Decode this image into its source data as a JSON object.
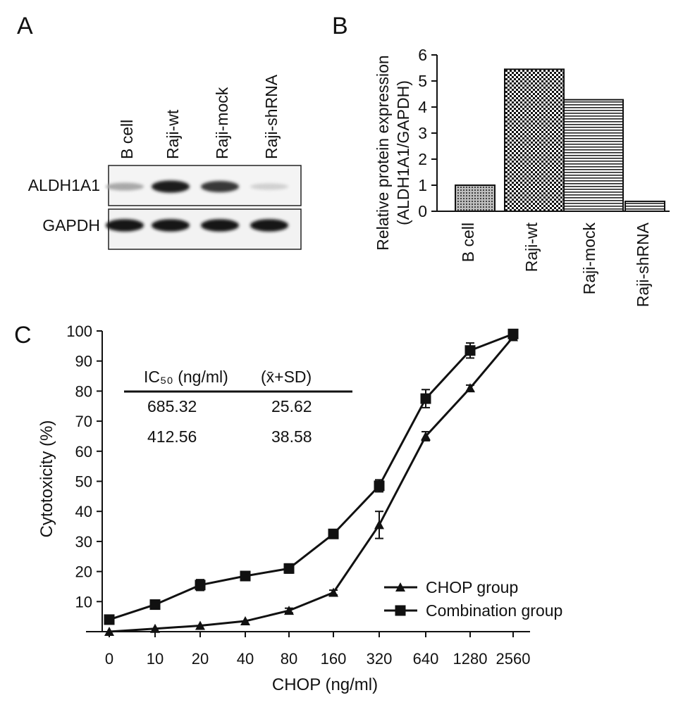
{
  "panels": {
    "a": "A",
    "b": "B",
    "c": "C"
  },
  "western_blot": {
    "lanes": [
      "B cell",
      "Raji-wt",
      "Raji-mock",
      "Raji-shRNA"
    ],
    "rows": [
      {
        "label": "ALDH1A1",
        "intensity": [
          0.3,
          0.92,
          0.8,
          0.12
        ]
      },
      {
        "label": "GAPDH",
        "intensity": [
          0.95,
          0.95,
          0.95,
          0.95
        ]
      }
    ]
  },
  "chart_data": [
    {
      "type": "bar",
      "ylabel_line1": "Relative protein expression",
      "ylabel_line2": "(ALDH1A1/GAPDH)",
      "categories": [
        "B cell",
        "Raji-wt",
        "Raji-mock",
        "Raji-shRNA"
      ],
      "values": [
        1.0,
        5.45,
        4.28,
        0.38
      ],
      "patterns": [
        "dots",
        "checker",
        "hlines",
        "hlines"
      ],
      "ylim": [
        0,
        6
      ],
      "yticks": [
        0,
        1,
        2,
        3,
        4,
        5,
        6
      ]
    },
    {
      "type": "line",
      "xlabel": "CHOP (ng/ml)",
      "ylabel": "Cytotoxicity (%)",
      "categories": [
        "0",
        "10",
        "20",
        "40",
        "80",
        "160",
        "320",
        "640",
        "1280",
        "2560"
      ],
      "ylim": [
        0,
        100
      ],
      "yticks": [
        10,
        20,
        30,
        40,
        50,
        60,
        70,
        80,
        90,
        100
      ],
      "series": [
        {
          "name": "CHOP group",
          "marker": "triangle",
          "values": [
            0,
            1,
            2,
            3.5,
            7,
            13,
            35.5,
            65,
            81,
            98
          ],
          "errors": [
            0.5,
            0.5,
            0.5,
            0.6,
            0.8,
            0.8,
            4.5,
            1.5,
            1.0,
            1.0
          ]
        },
        {
          "name": "Combination group",
          "marker": "square",
          "values": [
            4,
            9,
            15.5,
            18.5,
            21,
            32.5,
            48.5,
            77.5,
            93.5,
            99
          ],
          "errors": [
            0.6,
            0.8,
            1.8,
            1.0,
            1.5,
            1.0,
            2.0,
            3.0,
            2.5,
            1.0
          ]
        }
      ],
      "inset_table": {
        "header": [
          "IC₅₀ (ng/ml)",
          "(x̄+SD)"
        ],
        "rows": [
          [
            "685.32",
            "25.62"
          ],
          [
            "412.56",
            "38.58"
          ]
        ]
      }
    }
  ]
}
